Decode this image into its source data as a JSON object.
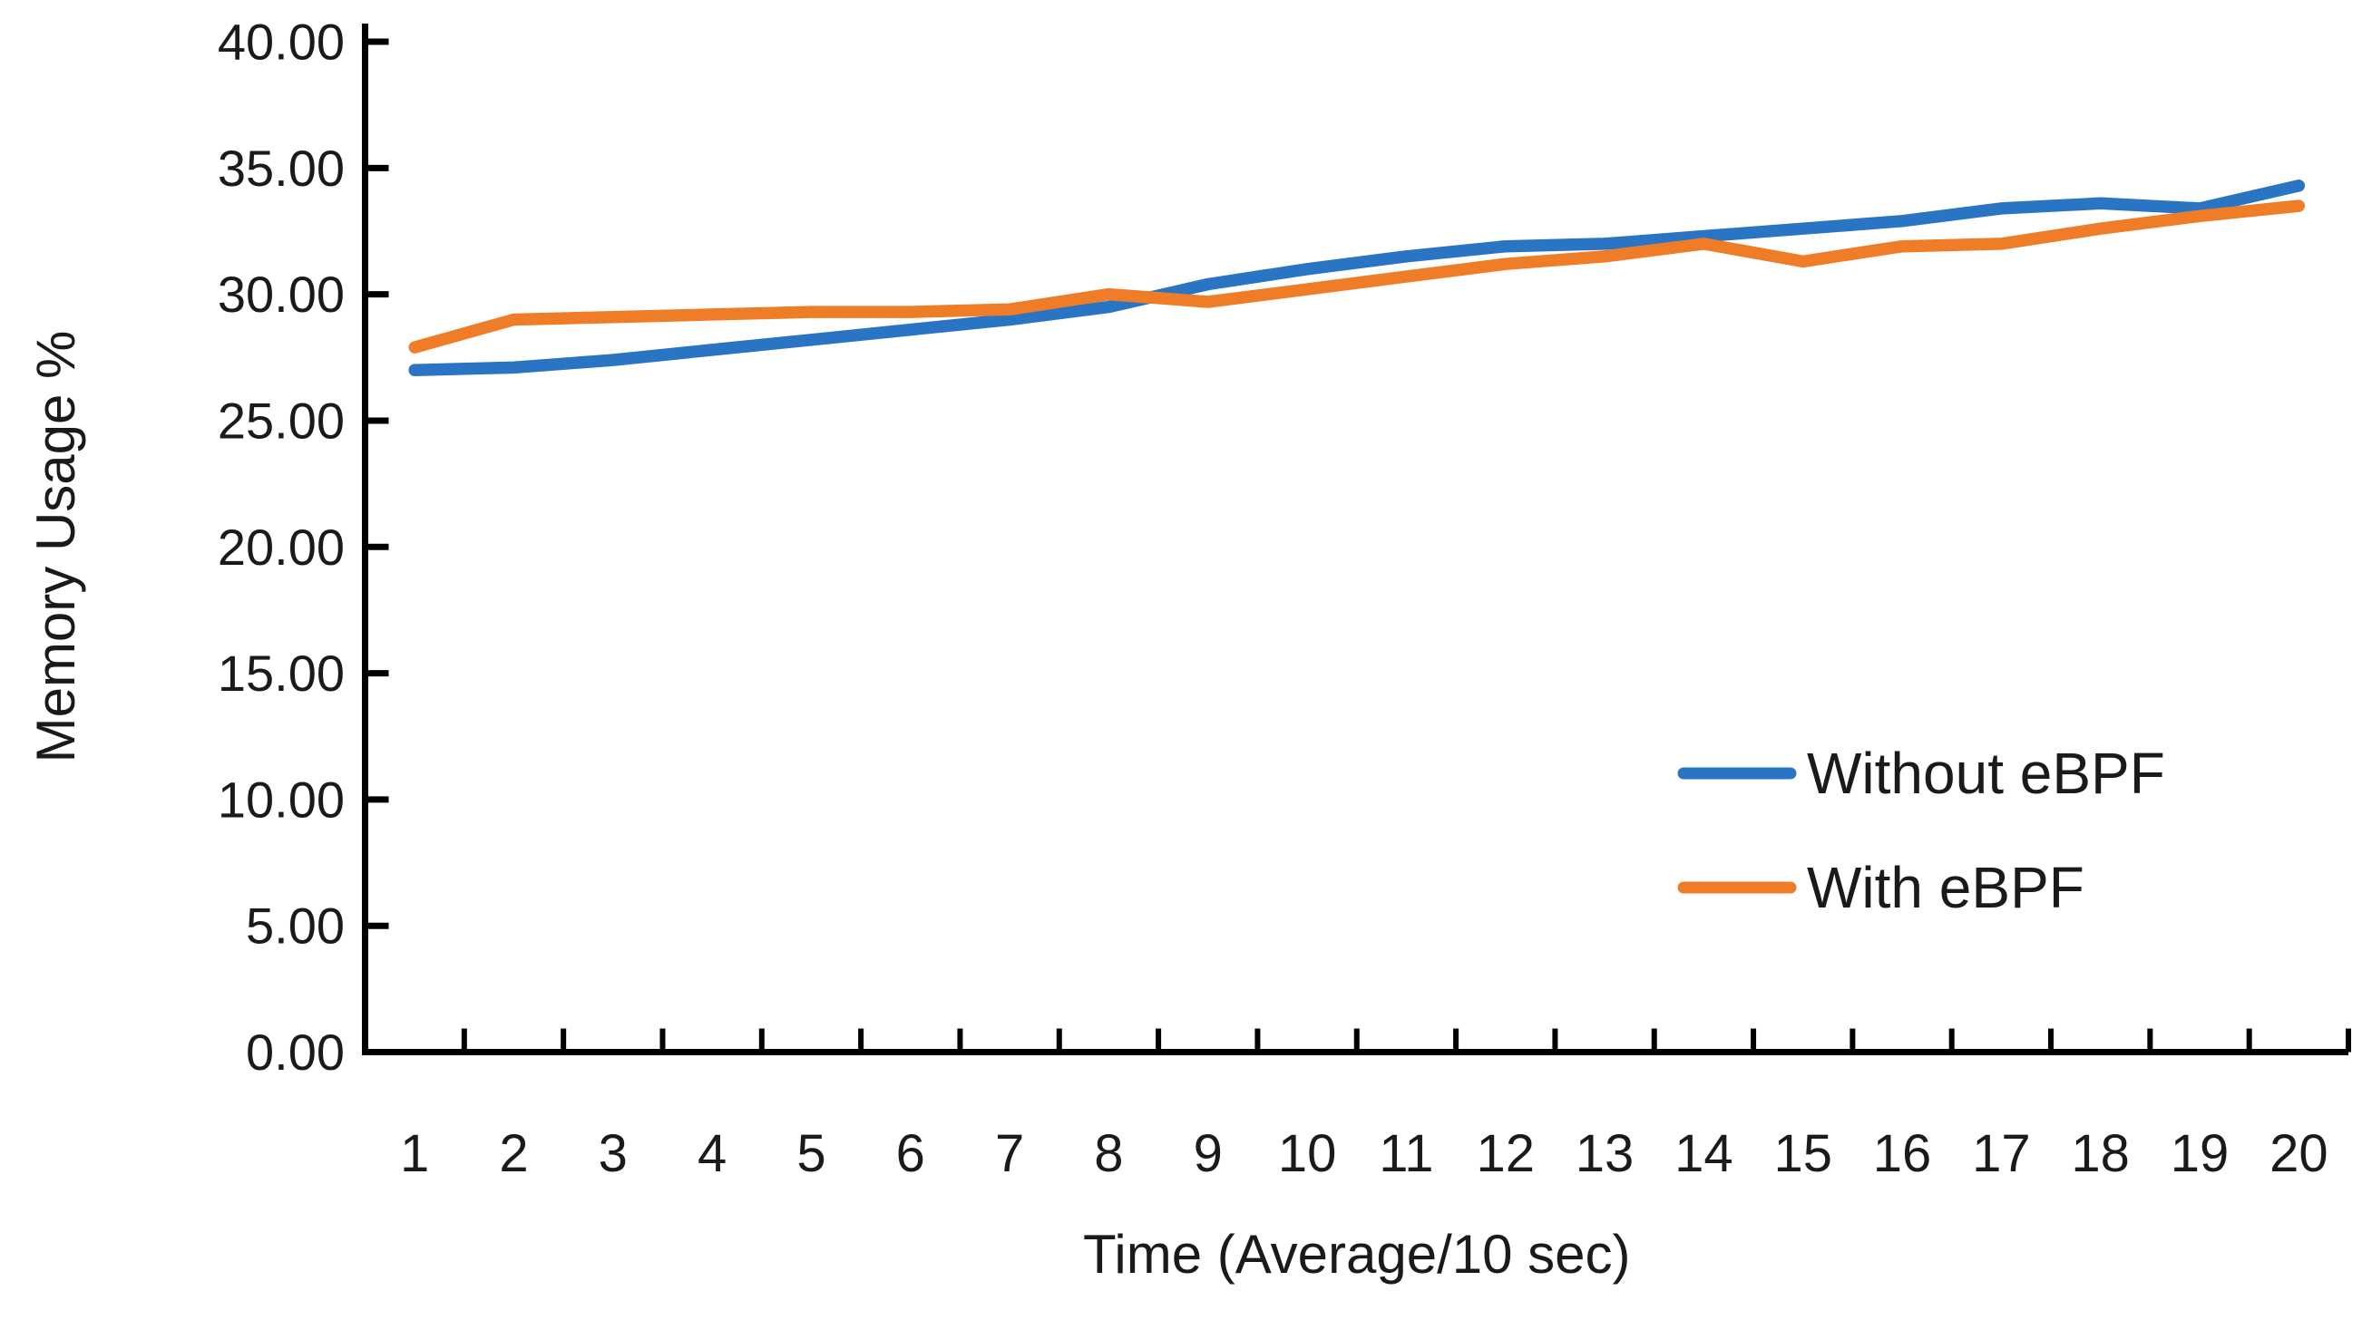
{
  "chart_data": {
    "type": "line",
    "title": "",
    "xlabel": "Time (Average/10 sec)",
    "ylabel": "Memory Usage %",
    "x_tick_labels": [
      "1",
      "2",
      "3",
      "4",
      "5",
      "6",
      "7",
      "8",
      "9",
      "10",
      "11",
      "12",
      "13",
      "14",
      "15",
      "16",
      "17",
      "18",
      "19",
      "20"
    ],
    "y_tick_labels": [
      "40.00",
      "35.00",
      "30.00",
      "25.00",
      "20.00",
      "15.00",
      "10.00",
      "5.00",
      "0.00"
    ],
    "y_tick_values": [
      40,
      35,
      30,
      25,
      20,
      15,
      10,
      5,
      0
    ],
    "ylim": [
      0,
      40
    ],
    "xlim_categories": 20,
    "grid": "off",
    "legend_position": "right-center",
    "axis_color": "#000000",
    "tick_style": "inside",
    "series": [
      {
        "name": "Without eBPF",
        "color": "#2A74C4",
        "values": [
          27.0,
          27.1,
          27.4,
          27.8,
          28.2,
          28.6,
          29.0,
          29.5,
          30.4,
          31.0,
          31.5,
          31.9,
          32.0,
          32.3,
          32.6,
          32.9,
          33.4,
          33.6,
          33.4,
          34.3
        ]
      },
      {
        "name": "With eBPF",
        "color": "#EF7D28",
        "values": [
          27.9,
          29.0,
          29.1,
          29.2,
          29.3,
          29.3,
          29.4,
          30.0,
          29.7,
          30.2,
          30.7,
          31.2,
          31.5,
          32.0,
          31.3,
          31.9,
          32.0,
          32.6,
          33.1,
          33.5
        ]
      }
    ]
  }
}
